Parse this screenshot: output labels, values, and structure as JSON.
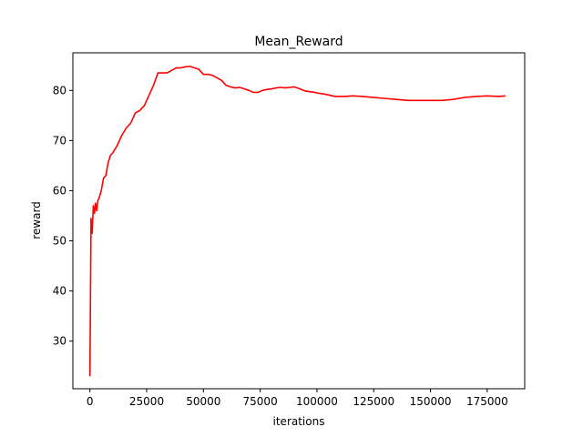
{
  "chart_data": {
    "type": "line",
    "title": "Mean_Reward",
    "xlabel": "iterations",
    "ylabel": "reward",
    "xlim": [
      -7500,
      191500
    ],
    "ylim": [
      20.5,
      87.5
    ],
    "x_ticks": [
      0,
      25000,
      50000,
      75000,
      100000,
      125000,
      150000,
      175000
    ],
    "y_ticks": [
      30,
      40,
      50,
      60,
      70,
      80
    ],
    "grid": false,
    "legend": "none",
    "series": [
      {
        "color": "#ff0000",
        "x": [
          0,
          500,
          1000,
          1500,
          2000,
          2500,
          3000,
          3500,
          4000,
          5000,
          6000,
          7000,
          8000,
          9000,
          10000,
          12000,
          14000,
          16000,
          18000,
          20000,
          22000,
          24000,
          26000,
          28000,
          30000,
          31000,
          32000,
          34000,
          36000,
          38000,
          40000,
          42000,
          44000,
          46000,
          48000,
          50000,
          52000,
          54000,
          56000,
          58000,
          60000,
          62000,
          64000,
          66000,
          68000,
          70000,
          72000,
          74000,
          76000,
          78000,
          80000,
          82000,
          84000,
          86000,
          88000,
          90000,
          92000,
          94000,
          96000,
          98000,
          100000,
          104000,
          108000,
          112000,
          116000,
          120000,
          125000,
          130000,
          135000,
          140000,
          145000,
          150000,
          155000,
          160000,
          165000,
          170000,
          175000,
          180000,
          183000
        ],
        "values": [
          23.0,
          54.5,
          51.5,
          57.0,
          55.5,
          57.5,
          56.0,
          58.0,
          58.5,
          60.0,
          62.5,
          63.0,
          65.5,
          67.0,
          67.5,
          69.0,
          71.0,
          72.5,
          73.5,
          75.5,
          76.0,
          77.0,
          79.0,
          81.0,
          83.5,
          83.5,
          83.5,
          83.5,
          84.0,
          84.5,
          84.5,
          84.7,
          84.8,
          84.5,
          84.2,
          83.2,
          83.2,
          83.0,
          82.5,
          82.0,
          81.0,
          80.7,
          80.5,
          80.6,
          80.3,
          80.0,
          79.6,
          79.6,
          80.0,
          80.2,
          80.3,
          80.5,
          80.6,
          80.5,
          80.6,
          80.7,
          80.4,
          80.0,
          79.8,
          79.7,
          79.5,
          79.2,
          78.8,
          78.8,
          78.9,
          78.8,
          78.6,
          78.4,
          78.2,
          78.0,
          78.0,
          78.0,
          78.0,
          78.2,
          78.6,
          78.8,
          78.9,
          78.8,
          78.9
        ]
      }
    ]
  }
}
